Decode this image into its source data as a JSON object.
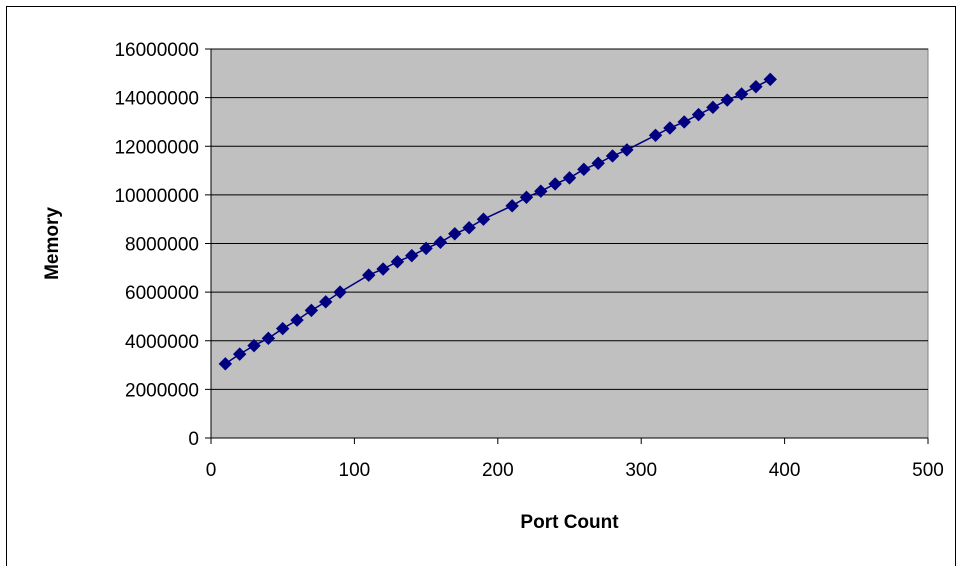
{
  "chart_data": {
    "type": "scatter",
    "title": "",
    "xlabel": "Port Count",
    "ylabel": "Memory",
    "xlim": [
      0,
      500
    ],
    "ylim": [
      0,
      16000000
    ],
    "x_ticks": [
      0,
      100,
      200,
      300,
      400,
      500
    ],
    "y_ticks": [
      0,
      2000000,
      4000000,
      6000000,
      8000000,
      10000000,
      12000000,
      14000000,
      16000000
    ],
    "grid": "horizontal",
    "legend": "none",
    "colors": {
      "plot_background": "#c0c0c0",
      "series": "#000080",
      "gridline": "#000000"
    },
    "series": [
      {
        "marker": "diamond",
        "connected": true,
        "x": [
          10,
          20,
          30,
          40,
          50,
          60,
          70,
          80,
          90,
          110,
          120,
          130,
          140,
          150,
          160,
          170,
          180,
          190,
          210,
          220,
          230,
          240,
          250,
          260,
          270,
          280,
          290,
          310,
          320,
          330,
          340,
          350,
          360,
          370,
          380,
          390
        ],
        "y": [
          3050000,
          3450000,
          3800000,
          4100000,
          4500000,
          4850000,
          5250000,
          5600000,
          6000000,
          6700000,
          6950000,
          7250000,
          7500000,
          7800000,
          8050000,
          8400000,
          8650000,
          9000000,
          9550000,
          9900000,
          10150000,
          10450000,
          10700000,
          11050000,
          11300000,
          11600000,
          11850000,
          12450000,
          12750000,
          13000000,
          13300000,
          13600000,
          13900000,
          14150000,
          14450000,
          14750000
        ]
      }
    ]
  }
}
